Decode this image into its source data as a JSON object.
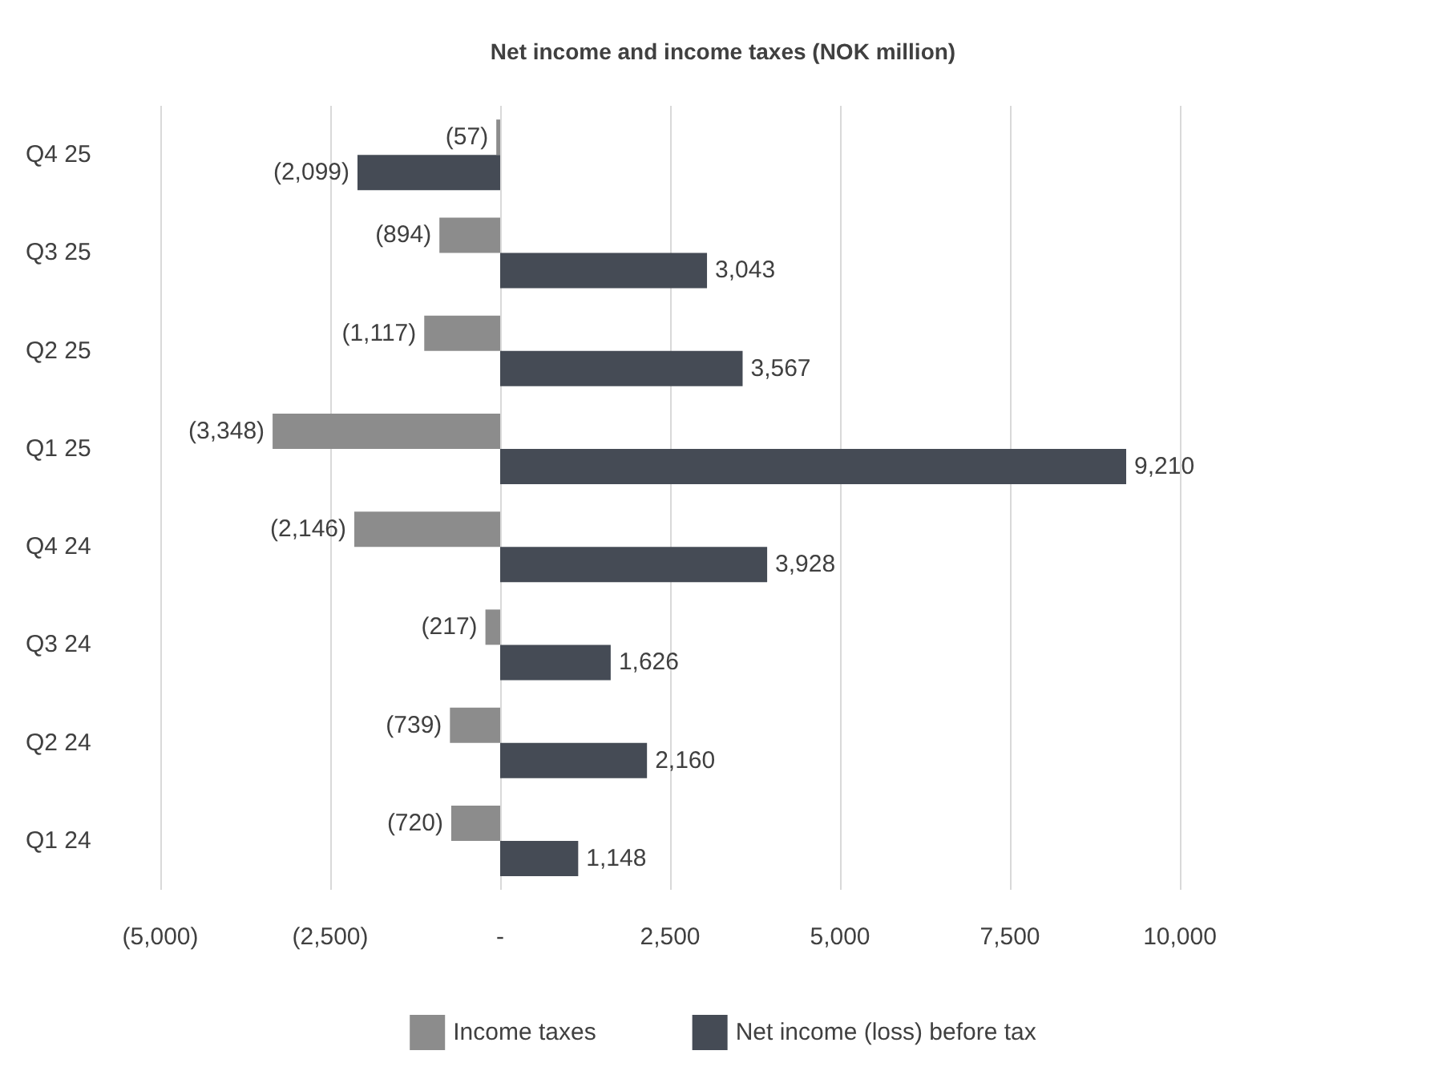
{
  "chart_data": {
    "type": "bar",
    "orientation": "horizontal",
    "title": "Net income and income taxes (NOK million)",
    "categories": [
      "Q4 25",
      "Q3 25",
      "Q2 25",
      "Q1 25",
      "Q4 24",
      "Q3 24",
      "Q2 24",
      "Q1 24"
    ],
    "series": [
      {
        "name": "Income taxes",
        "color": "#8c8c8c",
        "values": [
          -57,
          -894,
          -1117,
          -3348,
          -2146,
          -217,
          -739,
          -720
        ],
        "value_labels": [
          "(57)",
          "(894)",
          "(1,117)",
          "(3,348)",
          "(2,146)",
          "(217)",
          "(739)",
          "(720)"
        ]
      },
      {
        "name": "Net income (loss) before tax",
        "color": "#454b55",
        "values": [
          -2099,
          3043,
          3567,
          9210,
          3928,
          1626,
          2160,
          1148
        ],
        "value_labels": [
          "(2,099)",
          "3,043",
          "3,567",
          "9,210",
          "3,928",
          "1,626",
          "2,160",
          "1,148"
        ]
      }
    ],
    "xlim": [
      -5000,
      10000
    ],
    "xticks": [
      {
        "value": -5000,
        "label": "(5,000)"
      },
      {
        "value": -2500,
        "label": "(2,500)"
      },
      {
        "value": 0,
        "label": "-"
      },
      {
        "value": 2500,
        "label": "2,500"
      },
      {
        "value": 5000,
        "label": "5,000"
      },
      {
        "value": 7500,
        "label": "7,500"
      },
      {
        "value": 10000,
        "label": "10,000"
      }
    ],
    "grid": "x",
    "legend": "bottom"
  }
}
